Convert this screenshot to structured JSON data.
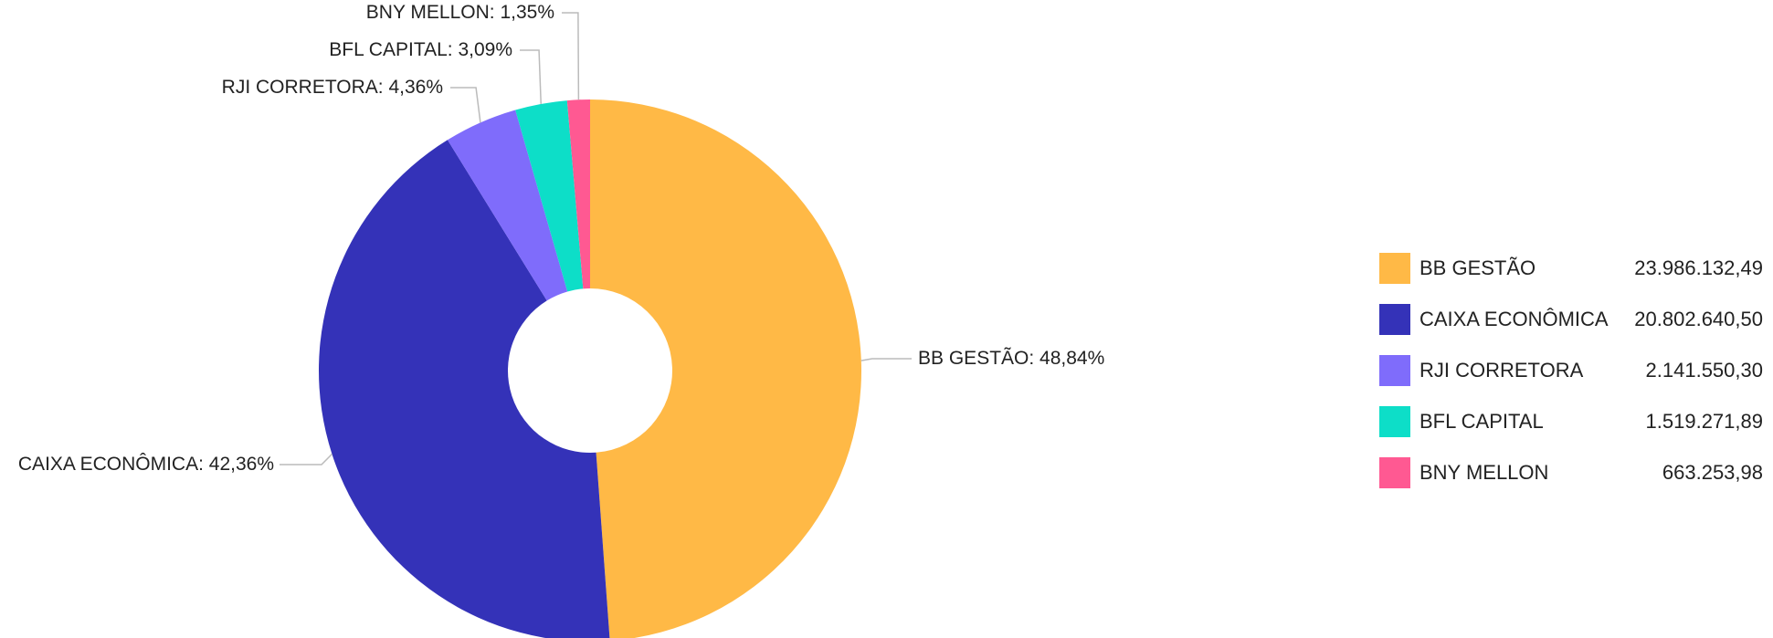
{
  "chart_data": {
    "type": "pie",
    "donut": true,
    "title": "",
    "series": [
      {
        "name": "BB GESTÃO",
        "value": 23986132.49,
        "value_label": "23.986.132,49",
        "percent": 48.84,
        "label": "BB GESTÃO: 48,84%",
        "color": "#FFB946"
      },
      {
        "name": "CAIXA ECONÔMICA",
        "value": 20802640.5,
        "value_label": "20.802.640,50",
        "percent": 42.36,
        "label": "CAIXA ECONÔMICA: 42,36%",
        "color": "#3432B8"
      },
      {
        "name": "RJI CORRETORA",
        "value": 2141550.3,
        "value_label": "2.141.550,30",
        "percent": 4.36,
        "label": "RJI CORRETORA: 4,36%",
        "color": "#7F6CFB"
      },
      {
        "name": "BFL CAPITAL",
        "value": 1519271.89,
        "value_label": "1.519.271,89",
        "percent": 3.09,
        "label": "BFL CAPITAL: 3,09%",
        "color": "#0DDEC8"
      },
      {
        "name": "BNY MELLON",
        "value": 663253.98,
        "value_label": "663.253,98",
        "percent": 1.35,
        "label": "BNY MELLON: 1,35%",
        "color": "#FF5992"
      }
    ],
    "legend_position": "right"
  }
}
